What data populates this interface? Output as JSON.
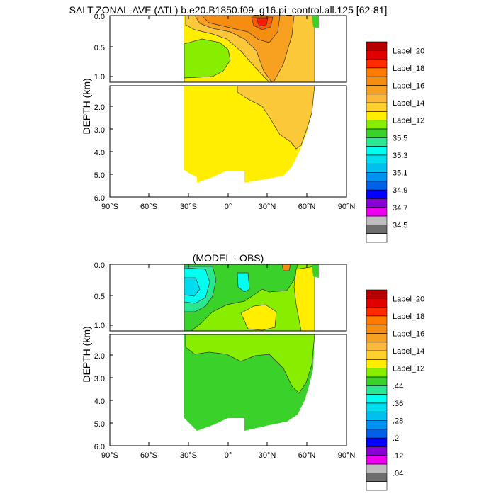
{
  "chart_data": [
    {
      "type": "heatmap",
      "title": "SALT ZONAL-AVE (ATL) b.e20.B1850.f09_g16.pi_control.all.125 [62-81]",
      "ylabel": "DEPTH (km)",
      "xlim": [
        -90,
        90
      ],
      "ylim_upper": [
        0.0,
        1.1
      ],
      "ylim_lower": [
        1.1,
        6.0
      ],
      "x_ticks": [
        "90°S",
        "60°S",
        "30°S",
        "0°",
        "30°N",
        "60°N",
        "90°N"
      ],
      "y_ticks_upper": [
        "0.0",
        "0.5",
        "1.0"
      ],
      "y_ticks_lower": [
        "2.0",
        "3.0",
        "4.0",
        "5.0",
        "6.0"
      ],
      "colorbar_labels": [
        "Label_20",
        "Label_18",
        "Label_16",
        "Label_14",
        "Label_12",
        "35.5",
        "35.3",
        "35.1",
        "34.9",
        "34.7",
        "34.5"
      ],
      "colorbar_colors": [
        "#b40000",
        "#e00000",
        "#ff2a00",
        "#ff7a00",
        "#f58d10",
        "#f8a020",
        "#fbb83a",
        "#ffd12e",
        "#ffee00",
        "#88ee00",
        "#3ad22a",
        "#2ae892",
        "#00ffee",
        "#00ddee",
        "#00c0f0",
        "#0090f0",
        "#0060e8",
        "#0000ff",
        "#8a00d8",
        "#ee00ee",
        "#bdbdbd",
        "#6e6e6e",
        "#ffffff"
      ]
    },
    {
      "type": "heatmap",
      "title": "(MODEL - OBS)",
      "ylabel": "DEPTH (km)",
      "xlim": [
        -90,
        90
      ],
      "ylim_upper": [
        0.0,
        1.1
      ],
      "ylim_lower": [
        1.1,
        6.0
      ],
      "x_ticks": [
        "90°S",
        "60°S",
        "30°S",
        "0°",
        "30°N",
        "60°N",
        "90°N"
      ],
      "y_ticks_upper": [
        "0.0",
        "0.5",
        "1.0"
      ],
      "y_ticks_lower": [
        "2.0",
        "3.0",
        "4.0",
        "5.0",
        "6.0"
      ],
      "colorbar_labels": [
        "Label_20",
        "Label_18",
        "Label_16",
        "Label_14",
        "Label_12",
        ".44",
        ".36",
        ".28",
        ".2",
        ".12",
        ".04"
      ],
      "colorbar_colors": [
        "#b40000",
        "#e00000",
        "#ff2a00",
        "#ff7a00",
        "#f58d10",
        "#f8a020",
        "#fbb83a",
        "#ffd12e",
        "#ffee00",
        "#88ee00",
        "#3ad22a",
        "#2ae892",
        "#00ffee",
        "#00ddee",
        "#00c0f0",
        "#0090f0",
        "#0060e8",
        "#0000ff",
        "#8a00d8",
        "#ee00ee",
        "#bdbdbd",
        "#6e6e6e",
        "#ffffff"
      ]
    }
  ]
}
